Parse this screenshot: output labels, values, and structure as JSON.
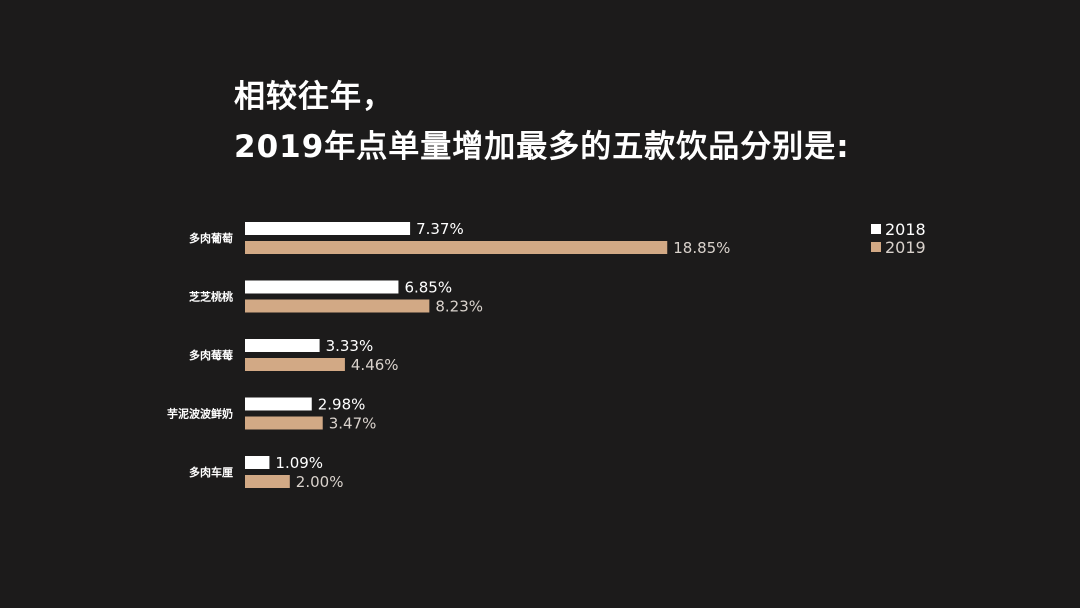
{
  "title": {
    "line1": "相较往年，",
    "line2": "2019年点单量增加最多的五款饮品分别是:"
  },
  "colors": {
    "background": "#1c1b1b",
    "series_2018": "#ffffff",
    "series_2019": "#d2a985",
    "label_2018": "#ffffff",
    "label_2019": "#d9d2cc"
  },
  "chart_data": {
    "type": "bar",
    "orientation": "horizontal",
    "categories": [
      "多肉葡萄",
      "芝芝桃桃",
      "多肉莓莓",
      "芋泥波波鲜奶",
      "多肉车厘"
    ],
    "series": [
      {
        "name": "2018",
        "values": [
          7.37,
          6.85,
          3.33,
          2.98,
          1.09
        ],
        "labels": [
          "7.37%",
          "6.85%",
          "3.33%",
          "2.98%",
          "1.09%"
        ]
      },
      {
        "name": "2019",
        "values": [
          18.85,
          8.23,
          4.46,
          3.47,
          2.0
        ],
        "labels": [
          "18.85%",
          "8.23%",
          "4.46%",
          "3.47%",
          "2.00%"
        ]
      }
    ],
    "unit": "%",
    "legend": "top-right",
    "grid": false,
    "xlabel": "",
    "ylabel": ""
  }
}
